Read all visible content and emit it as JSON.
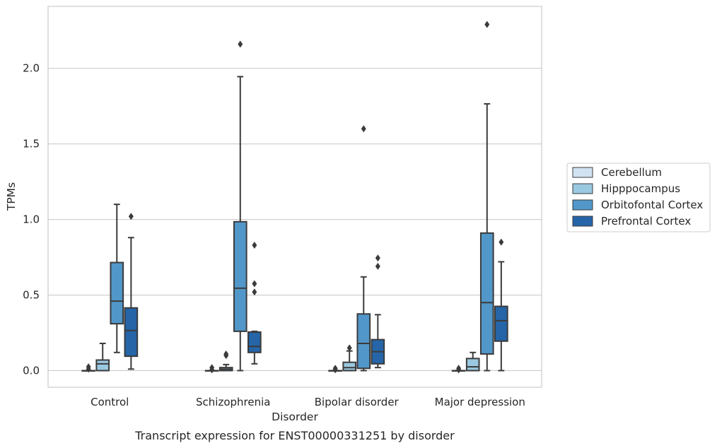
{
  "chart_data": {
    "type": "boxplot",
    "caption": "Transcript expression for ENST00000331251 by disorder",
    "xlabel": "Disorder",
    "ylabel": "TPMs",
    "ylim": [
      -0.11,
      2.41
    ],
    "yticks": [
      0.0,
      0.5,
      1.0,
      1.5,
      2.0
    ],
    "ytick_labels": [
      "0.0",
      "0.5",
      "1.0",
      "1.5",
      "2.0"
    ],
    "grid": "horizontal",
    "legend_placement": "right-center",
    "categories": [
      "Control",
      "Schizophrenia",
      "Bipolar disorder",
      "Major depression"
    ],
    "series": [
      {
        "name": "Cerebellum",
        "color": "#d1e2f2",
        "boxes": [
          {
            "q1": 0.0,
            "median": 0.0,
            "q3": 0.0,
            "whisker_low": 0.0,
            "whisker_high": 0.0,
            "outliers": [
              0.01,
              0.025
            ]
          },
          {
            "q1": 0.0,
            "median": 0.0,
            "q3": 0.0,
            "whisker_low": 0.0,
            "whisker_high": 0.0,
            "outliers": [
              0.005,
              0.02
            ]
          },
          {
            "q1": 0.0,
            "median": 0.0,
            "q3": 0.0,
            "whisker_low": 0.0,
            "whisker_high": 0.0,
            "outliers": [
              0.005,
              0.015
            ]
          },
          {
            "q1": 0.0,
            "median": 0.0,
            "q3": 0.0,
            "whisker_low": 0.0,
            "whisker_high": 0.0,
            "outliers": [
              0.005,
              0.015
            ]
          }
        ]
      },
      {
        "name": "Hipppocampus",
        "color": "#9ac8e0",
        "boxes": [
          {
            "q1": 0.0,
            "median": 0.045,
            "q3": 0.07,
            "whisker_low": 0.0,
            "whisker_high": 0.18,
            "outliers": []
          },
          {
            "q1": 0.0,
            "median": 0.01,
            "q3": 0.02,
            "whisker_low": 0.0,
            "whisker_high": 0.04,
            "outliers": [
              0.1,
              0.11
            ]
          },
          {
            "q1": 0.0,
            "median": 0.02,
            "q3": 0.055,
            "whisker_low": 0.0,
            "whisker_high": 0.13,
            "outliers": [
              0.15
            ]
          },
          {
            "q1": 0.0,
            "median": 0.025,
            "q3": 0.08,
            "whisker_low": 0.0,
            "whisker_high": 0.12,
            "outliers": []
          }
        ]
      },
      {
        "name": "Orbitofontal Cortex",
        "color": "#5297c9",
        "boxes": [
          {
            "q1": 0.31,
            "median": 0.46,
            "q3": 0.715,
            "whisker_low": 0.12,
            "whisker_high": 1.1,
            "outliers": []
          },
          {
            "q1": 0.26,
            "median": 0.545,
            "q3": 0.985,
            "whisker_low": 0.0,
            "whisker_high": 1.945,
            "outliers": [
              2.16
            ]
          },
          {
            "q1": 0.015,
            "median": 0.18,
            "q3": 0.375,
            "whisker_low": 0.0,
            "whisker_high": 0.62,
            "outliers": [
              1.6
            ]
          },
          {
            "q1": 0.11,
            "median": 0.45,
            "q3": 0.91,
            "whisker_low": 0.0,
            "whisker_high": 1.765,
            "outliers": [
              2.29
            ]
          }
        ]
      },
      {
        "name": "Prefrontal Cortex",
        "color": "#2565a8",
        "boxes": [
          {
            "q1": 0.095,
            "median": 0.265,
            "q3": 0.415,
            "whisker_low": 0.01,
            "whisker_high": 0.88,
            "outliers": [
              1.02
            ]
          },
          {
            "q1": 0.12,
            "median": 0.16,
            "q3": 0.255,
            "whisker_low": 0.045,
            "whisker_high": 0.26,
            "outliers": [
              0.52,
              0.575,
              0.83
            ]
          },
          {
            "q1": 0.045,
            "median": 0.125,
            "q3": 0.205,
            "whisker_low": 0.02,
            "whisker_high": 0.37,
            "outliers": [
              0.69,
              0.745
            ]
          },
          {
            "q1": 0.195,
            "median": 0.33,
            "q3": 0.425,
            "whisker_low": 0.0,
            "whisker_high": 0.72,
            "outliers": [
              0.85
            ]
          }
        ]
      }
    ]
  }
}
